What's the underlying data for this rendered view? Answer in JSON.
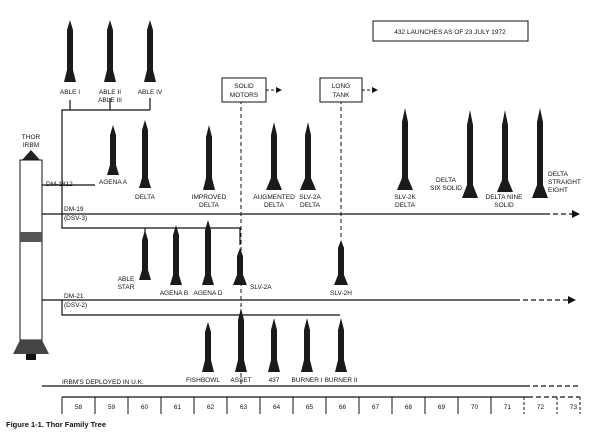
{
  "header_box": "432 LAUNCHES AS OF 23 JULY 1972",
  "origin": {
    "line1": "THOR",
    "line2": "IRBM"
  },
  "boxes": {
    "solid_motors": [
      "SOLID",
      "MOTORS"
    ],
    "long_tank": [
      "LONG",
      "TANK"
    ]
  },
  "lines": {
    "dm1812": "DM-1812",
    "dm19": [
      "DM-19",
      "(DSV-3)"
    ],
    "dm21": [
      "DM-21",
      "(DSV-2)"
    ],
    "irbm": "IRBM'S DEPLOYED IN U.K."
  },
  "vehicles": {
    "able1": [
      "ABLE I"
    ],
    "able23": [
      "ABLE II",
      "ABLE III"
    ],
    "able4": [
      "ABLE IV"
    ],
    "agena_a": [
      "AGENA A"
    ],
    "delta": [
      "DELTA"
    ],
    "improved_delta": [
      "IMPROVED",
      "DELTA"
    ],
    "augmented_delta": [
      "AUGMENTED",
      "DELTA"
    ],
    "slv2a_delta": [
      "SLV-2A",
      "DELTA"
    ],
    "slv2k_delta": [
      "SLV-2K",
      "DELTA"
    ],
    "delta_six_solid": [
      "DELTA",
      "SIX SOLID"
    ],
    "delta_nine_solid": [
      "DELTA NINE",
      "SOLID"
    ],
    "delta_straight_eight": [
      "DELTA",
      "STRAIGHT",
      "EIGHT"
    ],
    "able_star": [
      "ABLE",
      "STAR"
    ],
    "agena_b": [
      "AGENA B"
    ],
    "agena_d": [
      "AGENA D"
    ],
    "slv2a": [
      "SLV-2A"
    ],
    "slv2h": [
      "SLV-2H"
    ],
    "fishbowl": [
      "FISHBOWL"
    ],
    "asset": [
      "ASSET"
    ],
    "v437": [
      "437"
    ],
    "burner1": [
      "BURNER I"
    ],
    "burner2": [
      "BURNER II"
    ]
  },
  "years": [
    "58",
    "59",
    "60",
    "61",
    "62",
    "63",
    "64",
    "65",
    "66",
    "67",
    "68",
    "69",
    "70",
    "71",
    "72",
    "73"
  ],
  "caption": "Figure 1-1.  Thor Family Tree"
}
